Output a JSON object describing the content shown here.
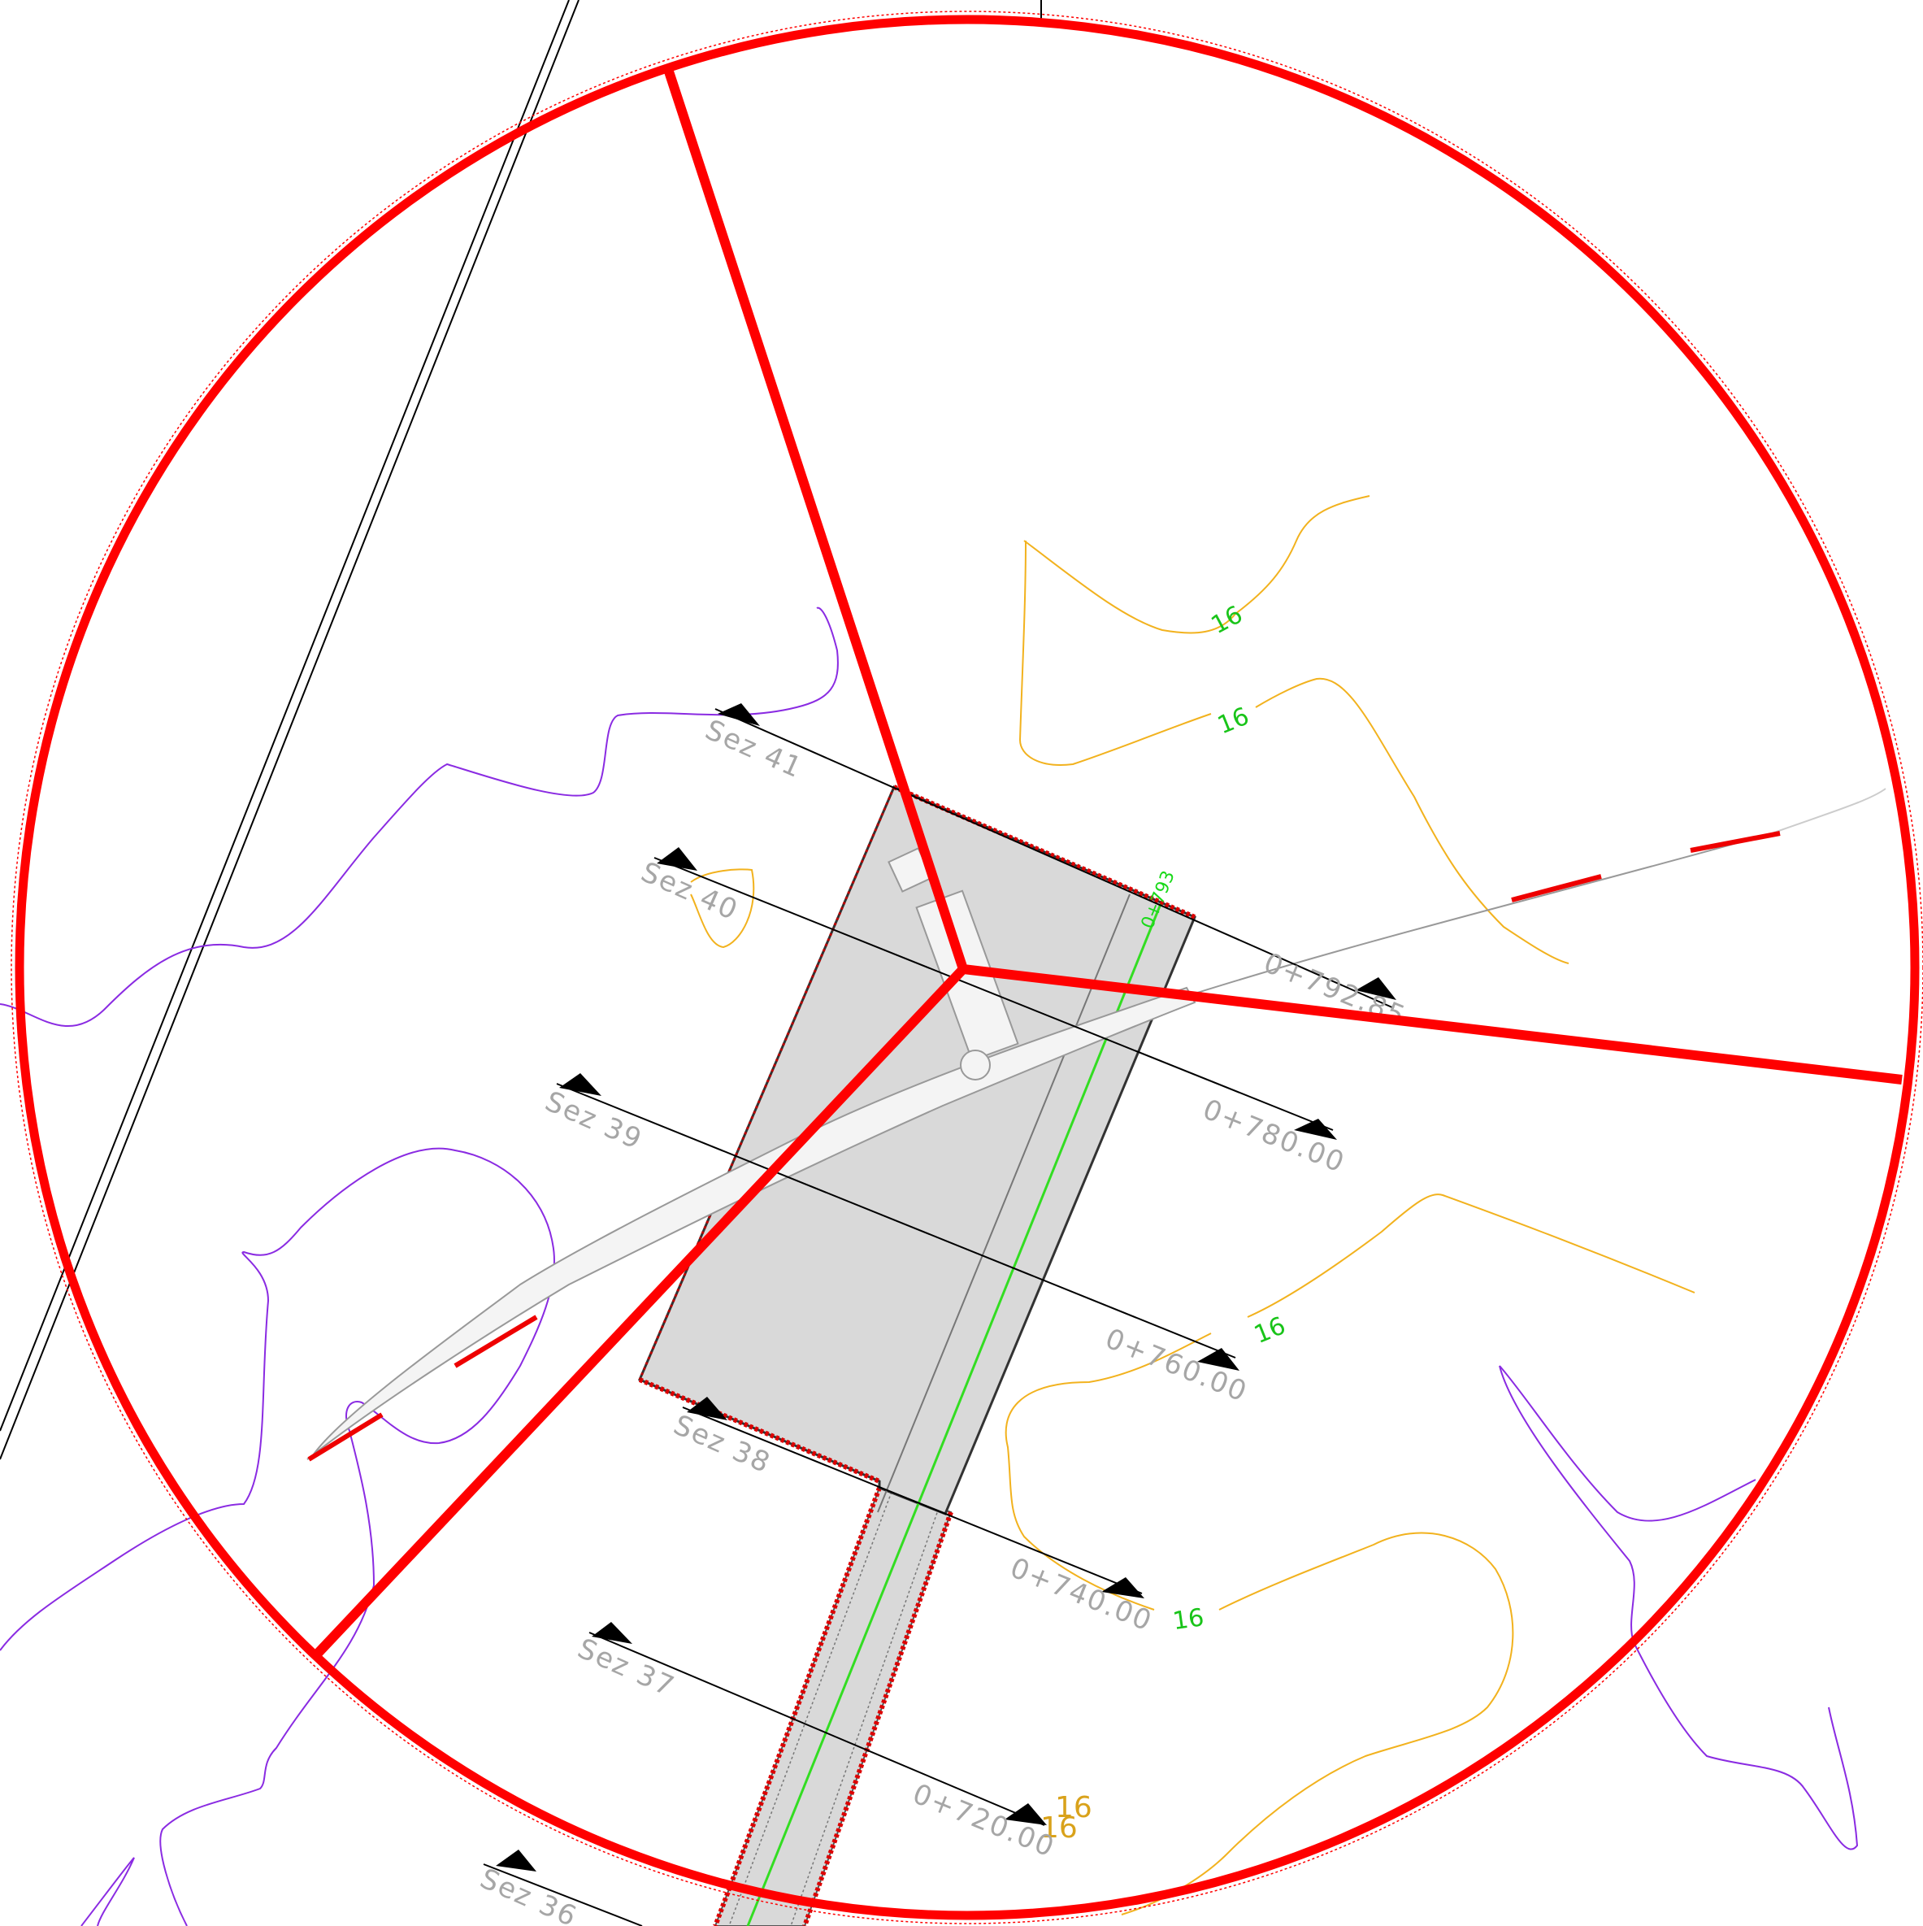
{
  "colors": {
    "buffer_red": "#ff0000",
    "contour_orange": "#f2b21e",
    "boundary_purple": "#8a2be2",
    "platform_gray": "#d9d9d9",
    "alignment_green": "#33dd22",
    "section_line": "#000000",
    "label_gray": "#a6a6a6"
  },
  "sections": [
    {
      "label": "Sez 41"
    },
    {
      "label": "Sez 40"
    },
    {
      "label": "Sez 39"
    },
    {
      "label": "Sez 38"
    },
    {
      "label": "Sez 37"
    },
    {
      "label": "Sez 36"
    }
  ],
  "stations": [
    {
      "label": "0+792.85"
    },
    {
      "label": "0+780.00"
    },
    {
      "label": "0+760.00"
    },
    {
      "label": "0+740.00"
    },
    {
      "label": "0+720.00"
    }
  ],
  "contour_labels": [
    {
      "label": "16"
    },
    {
      "label": "16"
    },
    {
      "label": "16"
    },
    {
      "label": "16"
    },
    {
      "label": "16"
    },
    {
      "label": "16"
    }
  ],
  "alignment_label": "0+793",
  "icons": {
    "turbine": "wind-turbine-icon",
    "section_marker": "section-arrow-icon"
  }
}
